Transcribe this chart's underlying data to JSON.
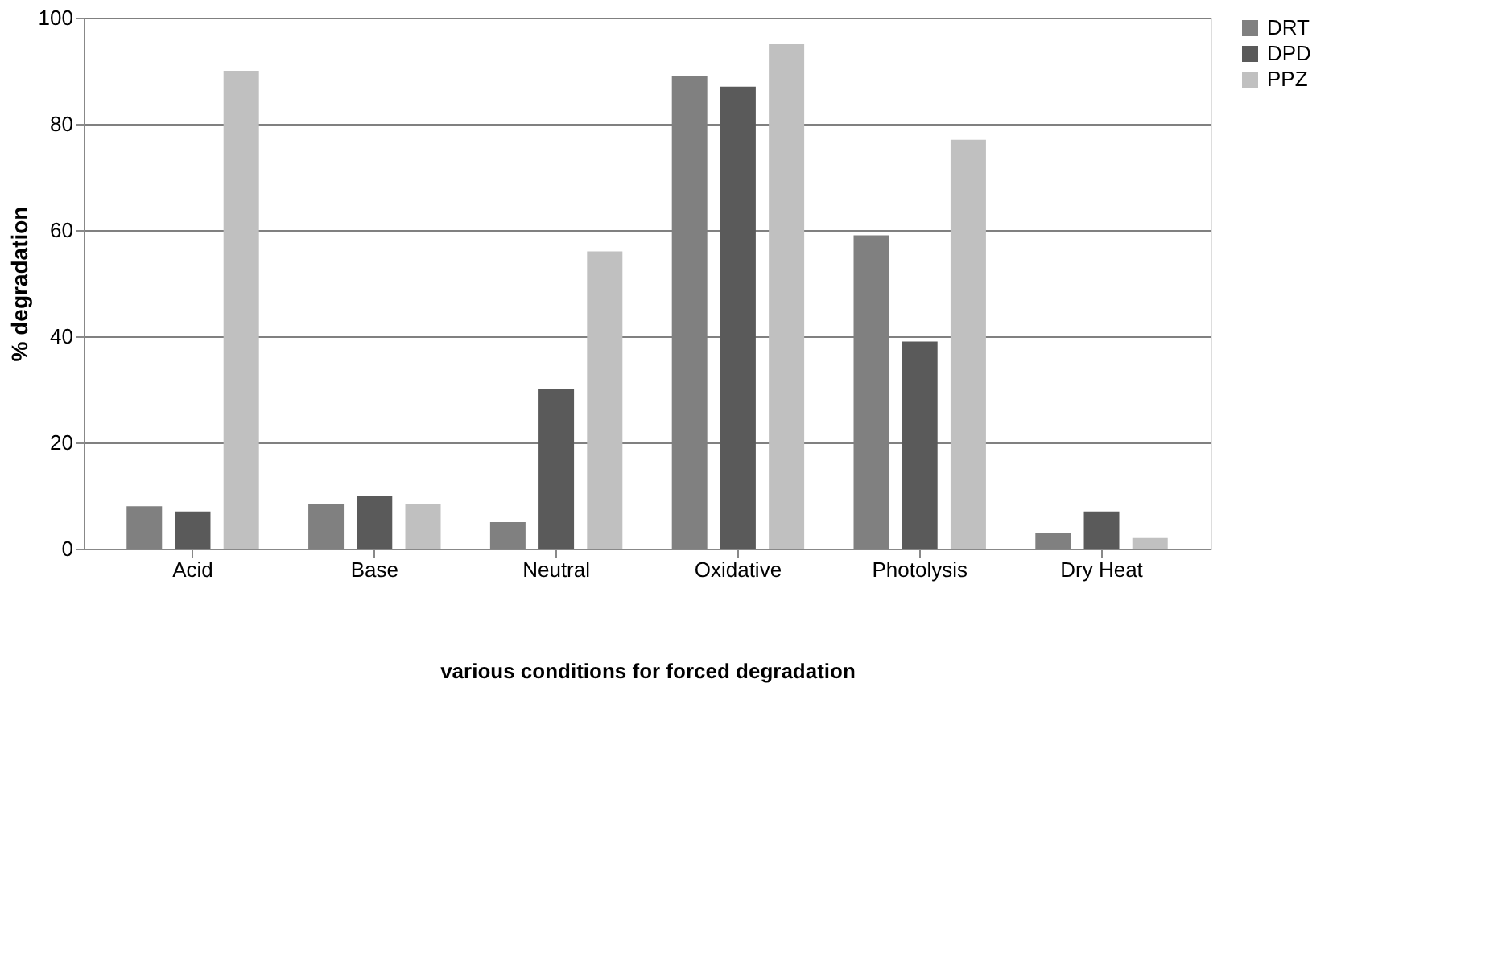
{
  "chart_data": {
    "type": "bar",
    "xlabel": "various conditions for forced degradation",
    "ylabel": "% degradation",
    "categories": [
      "Acid",
      "Base",
      "Neutral",
      "Oxidative",
      "Photolysis",
      "Dry Heat"
    ],
    "series": [
      {
        "name": "DRT",
        "color": "#808080",
        "values": [
          8,
          8.5,
          5,
          89,
          59,
          3
        ]
      },
      {
        "name": "DPD",
        "color": "#5a5a5a",
        "values": [
          7,
          10,
          30,
          87,
          39,
          7
        ]
      },
      {
        "name": "PPZ",
        "color": "#c0c0c0",
        "values": [
          90,
          8.5,
          56,
          95,
          77,
          2
        ]
      }
    ],
    "ylim": [
      0,
      100
    ],
    "yticks": [
      0,
      20,
      40,
      60,
      80,
      100
    ],
    "grid": "y",
    "legend": "right"
  }
}
